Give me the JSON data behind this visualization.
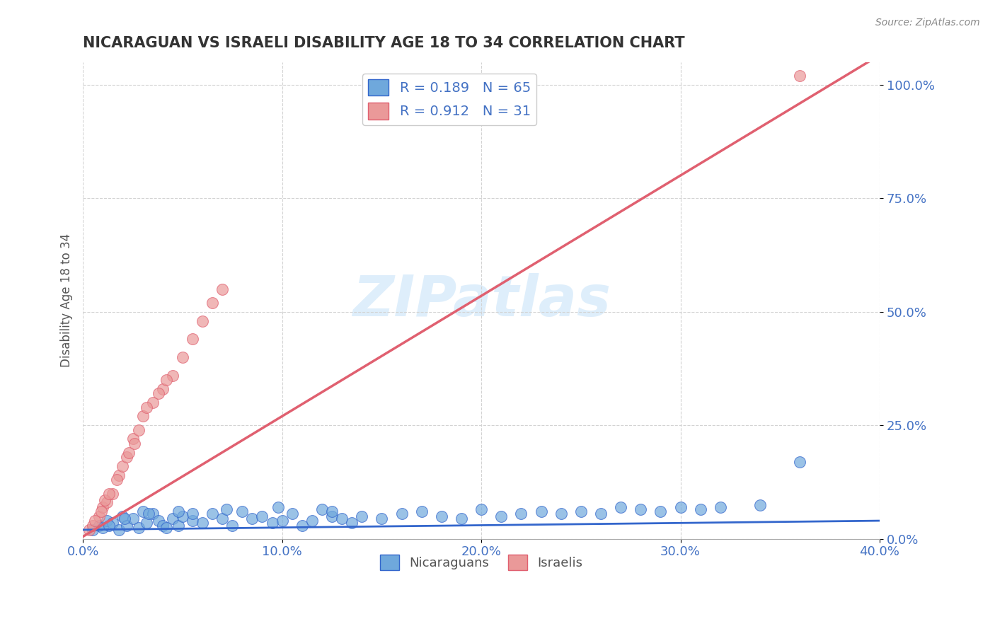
{
  "title": "NICARAGUAN VS ISRAELI DISABILITY AGE 18 TO 34 CORRELATION CHART",
  "source_text": "Source: ZipAtlas.com",
  "xlim": [
    0.0,
    40.0
  ],
  "ylim": [
    0.0,
    105.0
  ],
  "watermark": "ZIPatlas",
  "legend_blue_label": "R = 0.189   N = 65",
  "legend_pink_label": "R = 0.912   N = 31",
  "legend_bottom_blue": "Nicaraguans",
  "legend_bottom_pink": "Israelis",
  "blue_color": "#6FA8DC",
  "pink_color": "#EA9999",
  "blue_line_color": "#3366CC",
  "pink_line_color": "#E06070",
  "tick_color": "#4472C4",
  "blue_N": 65,
  "pink_N": 31,
  "nic_x": [
    0.5,
    0.8,
    1.0,
    1.2,
    1.5,
    1.8,
    2.0,
    2.2,
    2.5,
    2.8,
    3.0,
    3.2,
    3.5,
    3.8,
    4.0,
    4.2,
    4.5,
    4.8,
    5.0,
    5.5,
    6.0,
    6.5,
    7.0,
    7.5,
    8.0,
    8.5,
    9.0,
    9.5,
    10.0,
    10.5,
    11.0,
    11.5,
    12.0,
    12.5,
    13.0,
    13.5,
    14.0,
    15.0,
    16.0,
    17.0,
    18.0,
    19.0,
    20.0,
    21.0,
    22.0,
    23.0,
    24.0,
    25.0,
    26.0,
    27.0,
    28.0,
    29.0,
    30.0,
    31.0,
    32.0,
    34.0,
    1.3,
    2.1,
    3.3,
    4.8,
    5.5,
    7.2,
    9.8,
    36.0,
    12.5
  ],
  "nic_y": [
    2.0,
    3.0,
    2.5,
    4.0,
    3.5,
    2.0,
    5.0,
    3.0,
    4.5,
    2.5,
    6.0,
    3.5,
    5.5,
    4.0,
    3.0,
    2.5,
    4.5,
    3.0,
    5.0,
    4.0,
    3.5,
    5.5,
    4.5,
    3.0,
    6.0,
    4.5,
    5.0,
    3.5,
    4.0,
    5.5,
    3.0,
    4.0,
    6.5,
    5.0,
    4.5,
    3.5,
    5.0,
    4.5,
    5.5,
    6.0,
    5.0,
    4.5,
    6.5,
    5.0,
    5.5,
    6.0,
    5.5,
    6.0,
    5.5,
    7.0,
    6.5,
    6.0,
    7.0,
    6.5,
    7.0,
    7.5,
    3.0,
    4.5,
    5.5,
    6.0,
    5.5,
    6.5,
    7.0,
    17.0,
    6.0
  ],
  "isr_x": [
    0.3,
    0.5,
    0.8,
    1.0,
    1.2,
    1.5,
    1.8,
    2.0,
    2.2,
    2.5,
    2.8,
    3.0,
    3.5,
    4.0,
    4.5,
    5.0,
    5.5,
    6.0,
    6.5,
    7.0,
    0.6,
    1.1,
    1.7,
    2.3,
    0.9,
    1.3,
    2.6,
    3.2,
    36.0,
    3.8,
    4.2
  ],
  "isr_y": [
    2.0,
    3.0,
    5.0,
    7.0,
    8.0,
    10.0,
    14.0,
    16.0,
    18.0,
    22.0,
    24.0,
    27.0,
    30.0,
    33.0,
    36.0,
    40.0,
    44.0,
    48.0,
    52.0,
    55.0,
    4.0,
    8.5,
    13.0,
    19.0,
    6.0,
    10.0,
    21.0,
    29.0,
    102.0,
    32.0,
    35.0
  ],
  "nic_trend_x": [
    0,
    40
  ],
  "nic_trend_y": [
    2.0,
    4.0
  ],
  "isr_trend_x": [
    0,
    40
  ],
  "isr_trend_y": [
    0.5,
    106.5
  ]
}
